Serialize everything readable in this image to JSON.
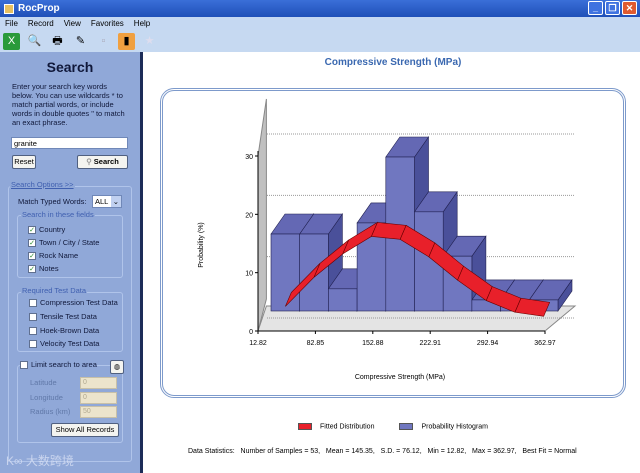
{
  "window": {
    "title": "RocProp",
    "minimize": "_",
    "restore": "❐",
    "close": "✕"
  },
  "menu": [
    "File",
    "Record",
    "View",
    "Favorites",
    "Help"
  ],
  "search": {
    "heading": "Search",
    "help": "Enter your search key words below. You can use wildcards * to match partial words, or include words in double quotes \" to match an exact phrase.",
    "value": "granite",
    "reset": "Reset",
    "search": "Search",
    "options_link": "Search Options  >>",
    "match_label": "Match Typed Words:",
    "match_value": "ALL",
    "fields_legend": "Search in these fields",
    "fields": [
      {
        "label": "Country",
        "checked": true
      },
      {
        "label": "Town / City / State",
        "checked": true
      },
      {
        "label": "Rock Name",
        "checked": true
      },
      {
        "label": "Notes",
        "checked": true
      }
    ],
    "required_legend": "Required Test Data",
    "required": [
      {
        "label": "Compression Test Data",
        "checked": false
      },
      {
        "label": "Tensile Test Data",
        "checked": false
      },
      {
        "label": "Hoek-Brown Data",
        "checked": false
      },
      {
        "label": "Velocity Test Data",
        "checked": false
      }
    ],
    "limit_label": "Limit search to area",
    "latitude_label": "Latitude",
    "latitude": "0",
    "longitude_label": "Longitude",
    "longitude": "0",
    "radius_label": "Radius (km)",
    "radius": "50",
    "show_all": "Show All Records"
  },
  "watermark": "大数跨境",
  "chart_data": {
    "type": "bar",
    "title": "Compressive Strength (MPa)",
    "xlabel": "Compressive Strength (MPa)",
    "ylabel": "Probability (%)",
    "ylim": [
      0,
      30
    ],
    "yticks": [
      0,
      10,
      20,
      30
    ],
    "xticks": [
      "12.82",
      "82.85",
      "152.88",
      "222.91",
      "292.94",
      "362.97"
    ],
    "xlim": [
      12.82,
      362.97
    ],
    "bins": 10,
    "series": [
      {
        "name": "Probability Histogram",
        "type": "bar3d",
        "color": "#7077c0",
        "values": [
          13.2,
          13.2,
          3.8,
          15.1,
          26.4,
          17.0,
          9.4,
          1.9,
          1.9,
          1.9
        ]
      },
      {
        "name": "Fitted Distribution",
        "type": "ribbon",
        "color": "#e8202a",
        "values": [
          2.5,
          7.5,
          11.5,
          14.5,
          14,
          11,
          7,
          3.5,
          1.5,
          0.8
        ]
      }
    ],
    "legend": "bottom",
    "grid": true
  },
  "stats": "Data Statistics:   Number of Samples = 53,   Mean = 145.35,   S.D. = 76.12,   Min = 12.82,   Max = 362.97,   Best Fit = Normal"
}
